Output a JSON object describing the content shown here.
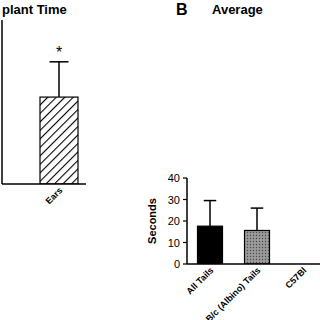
{
  "chart_data": [
    {
      "type": "bar",
      "title": "plant Time",
      "categories": [
        "Ears"
      ],
      "values": [
        21.2
      ],
      "errors": [
        8.6
      ],
      "annotations": [
        "*"
      ],
      "ylim": [
        0,
        40
      ],
      "tick_labels": "x",
      "color": "#000000"
    },
    {
      "type": "bar",
      "title": "Average",
      "panel_label": "B",
      "y_label": "Seconds",
      "categories": [
        "All Tails",
        "BALB/c (Albino) Tails",
        "C57Bl"
      ],
      "values": [
        17.6,
        15.6,
        null
      ],
      "errors": [
        11.9,
        10.4,
        null
      ],
      "ylim": [
        0,
        40
      ],
      "yticks": [
        0,
        10,
        20,
        30,
        40
      ],
      "colors": [
        "#000000",
        "#9a9a9a",
        "#cccccc"
      ]
    }
  ]
}
